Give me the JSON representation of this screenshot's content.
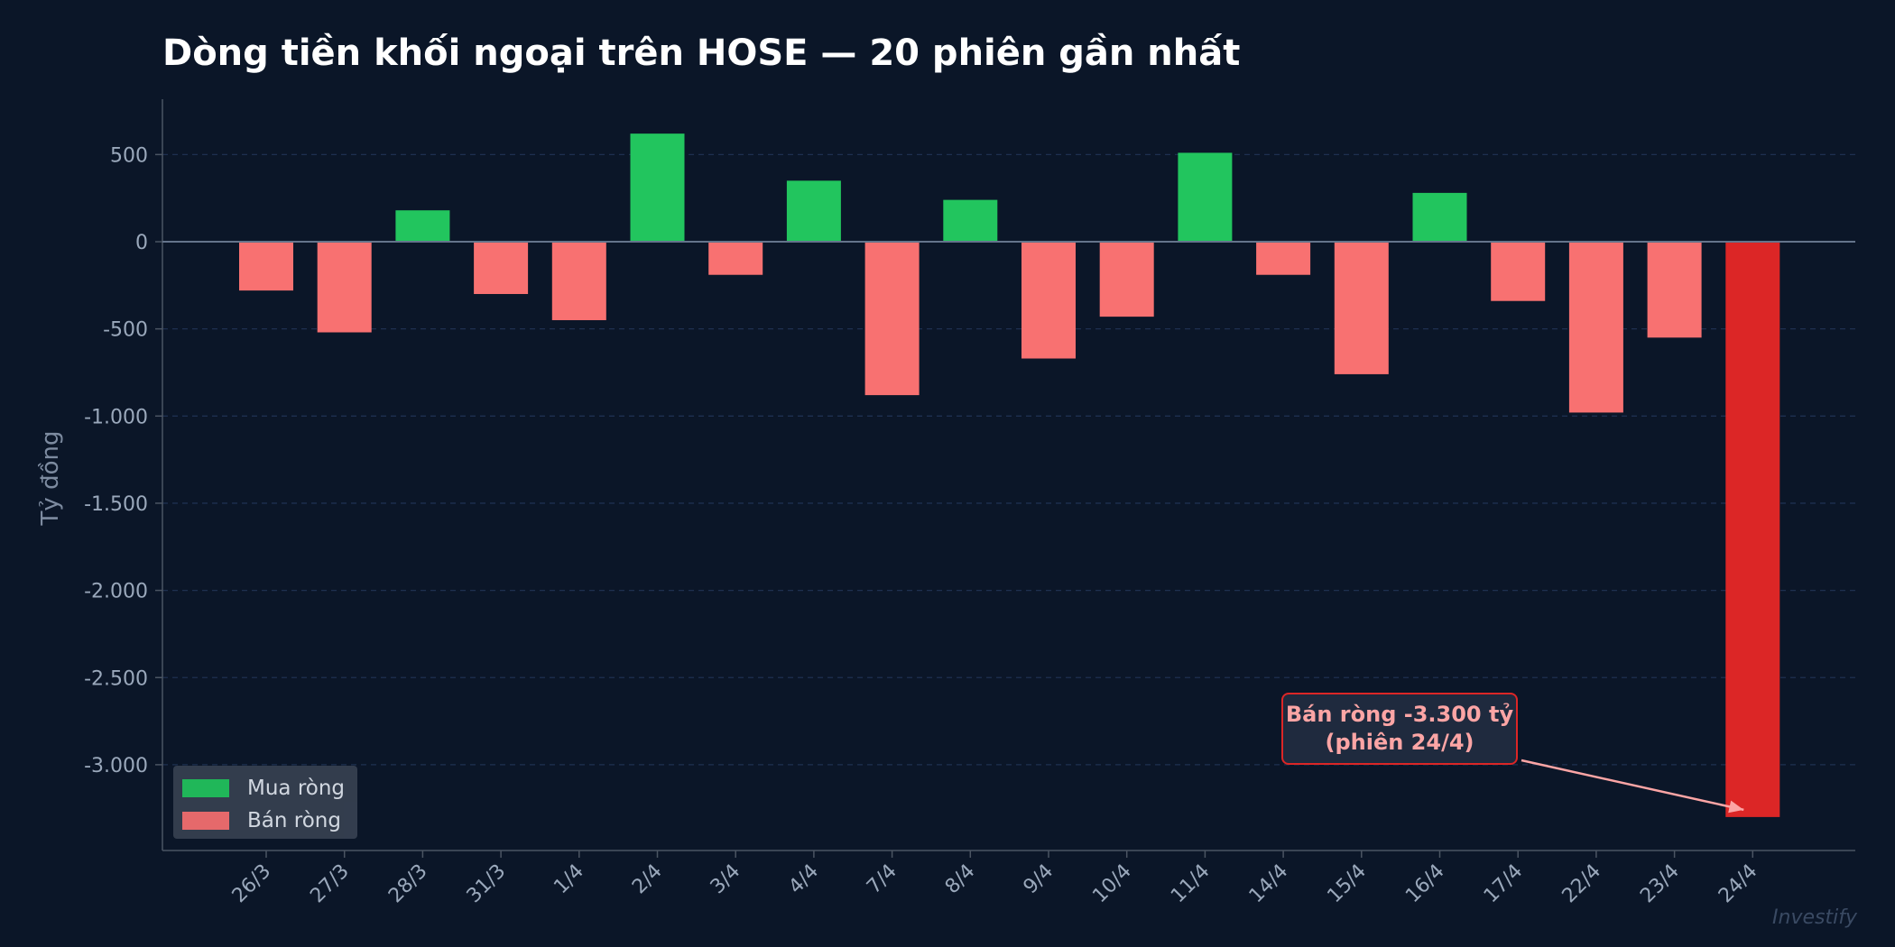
{
  "chart_data": {
    "type": "bar",
    "title": "Dòng tiền khối ngoại trên HOSE — 20 phiên gần nhất",
    "xlabel": "",
    "ylabel": "Tỷ đồng",
    "ylim": [
      -3500,
      800
    ],
    "yticks": [
      500,
      0,
      -500,
      -1000,
      -1500,
      -2000,
      -2500,
      -3000
    ],
    "ytick_labels": [
      "500",
      "0",
      "-500",
      "-1.000",
      "-1.500",
      "-2.000",
      "-2.500",
      "-3.000"
    ],
    "grid": true,
    "categories": [
      "26/3",
      "27/3",
      "28/3",
      "31/3",
      "1/4",
      "2/4",
      "3/4",
      "4/4",
      "7/4",
      "8/4",
      "9/4",
      "10/4",
      "11/4",
      "14/4",
      "15/4",
      "16/4",
      "17/4",
      "22/4",
      "23/4",
      "24/4"
    ],
    "values": [
      -280,
      -520,
      180,
      -300,
      -450,
      620,
      -190,
      350,
      -880,
      240,
      -670,
      -430,
      510,
      -190,
      -760,
      280,
      -340,
      -980,
      -550,
      -3300
    ],
    "colors": {
      "buy": "#22c55e",
      "sell": "#f87171",
      "highlight": "#dc2626"
    },
    "highlight_index": 19,
    "legend": {
      "position": "bottom-left",
      "items": [
        {
          "label": "Mua ròng",
          "color": "#22c55e"
        },
        {
          "label": "Bán ròng",
          "color": "#f87171"
        }
      ]
    },
    "annotation": {
      "line1": "Bán ròng -3.300 tỷ",
      "line2": "(phiên 24/4)",
      "target_category": "24/4"
    }
  },
  "watermark": "Investify"
}
